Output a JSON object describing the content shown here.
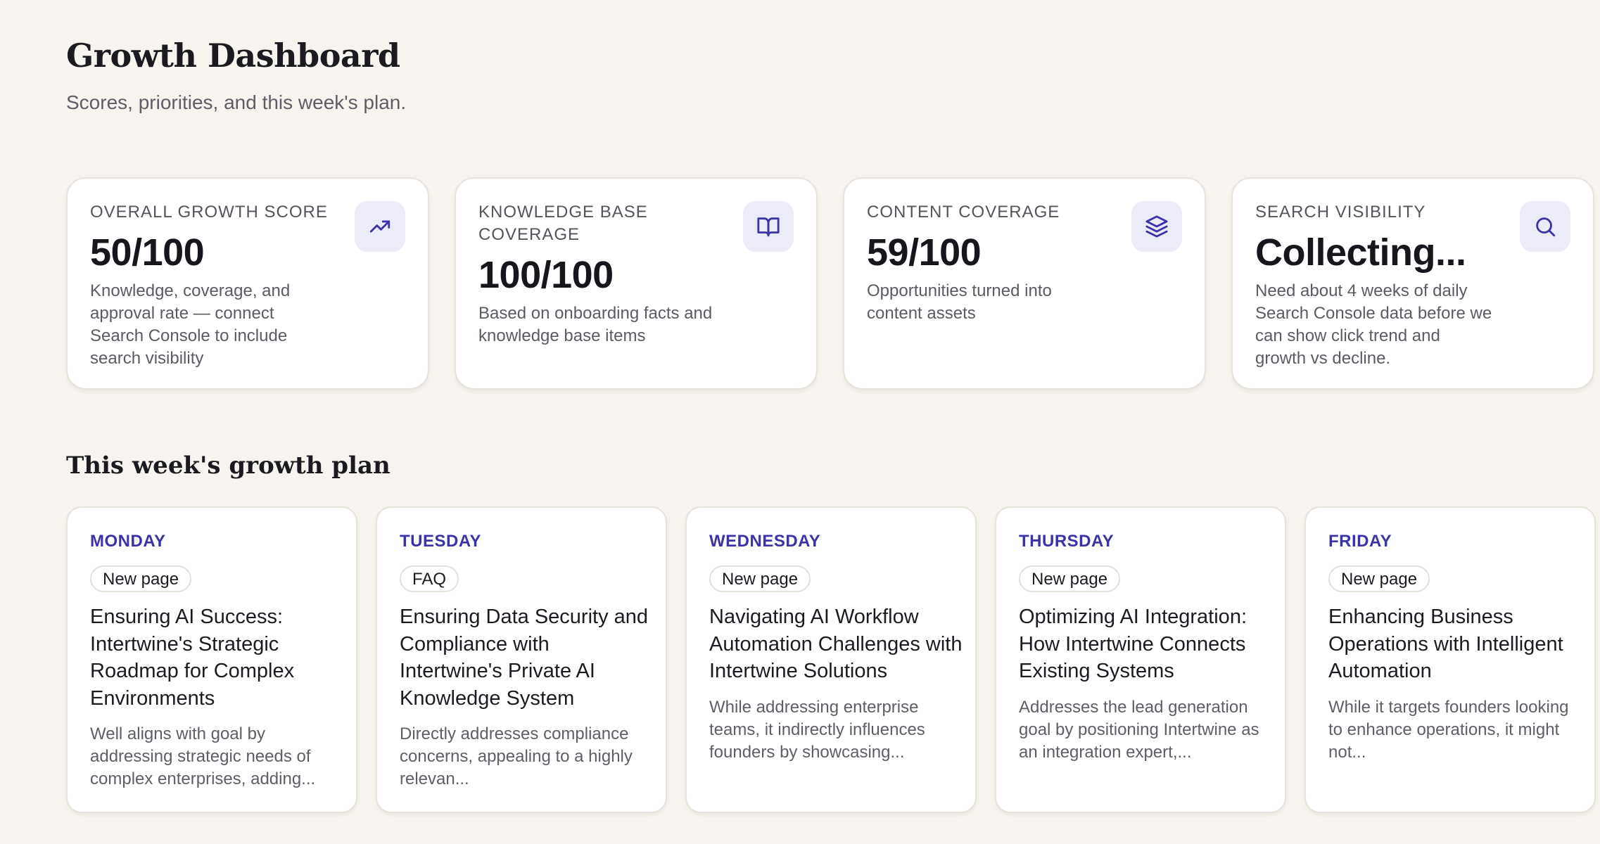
{
  "header": {
    "title": "Growth Dashboard",
    "subtitle": "Scores, priorities, and this week's plan."
  },
  "metrics": [
    {
      "label": "OVERALL GROWTH SCORE",
      "value": "50/100",
      "description": "Knowledge, coverage, and approval rate — connect Search Console to include search visibility",
      "icon": "trending-up-icon"
    },
    {
      "label": "KNOWLEDGE BASE COVERAGE",
      "value": "100/100",
      "description": "Based on onboarding facts and knowledge base items",
      "icon": "book-icon"
    },
    {
      "label": "CONTENT COVERAGE",
      "value": "59/100",
      "description": "Opportunities turned into content assets",
      "icon": "layers-icon"
    },
    {
      "label": "SEARCH VISIBILITY",
      "value": "Collecting...",
      "description": "Need about 4 weeks of daily Search Console data before we can show click trend and growth vs decline.",
      "icon": "search-icon"
    }
  ],
  "plan": {
    "title": "This week's growth plan",
    "days": [
      {
        "day": "MONDAY",
        "tag": "New page",
        "title": "Ensuring AI Success: Intertwine's Strategic Roadmap for Complex Environments",
        "summary": "Well aligns with goal by addressing strategic needs of complex enterprises, adding..."
      },
      {
        "day": "TUESDAY",
        "tag": "FAQ",
        "title": "Ensuring Data Security and Compliance with Intertwine's Private AI Knowledge System",
        "summary": "Directly addresses compliance concerns, appealing to a highly relevan..."
      },
      {
        "day": "WEDNESDAY",
        "tag": "New page",
        "title": "Navigating AI Workflow Automation Challenges with Intertwine Solutions",
        "summary": "While addressing enterprise teams, it indirectly influences founders by showcasing..."
      },
      {
        "day": "THURSDAY",
        "tag": "New page",
        "title": "Optimizing AI Integration: How Intertwine Connects Existing Systems",
        "summary": "Addresses the lead generation goal by positioning Intertwine as an integration expert,..."
      },
      {
        "day": "FRIDAY",
        "tag": "New page",
        "title": "Enhancing Business Operations with Intelligent Automation",
        "summary": "While it targets founders looking to enhance operations, it might not..."
      }
    ]
  },
  "colors": {
    "background": "#f7f3ee",
    "accent": "#3b33a8",
    "icon_badge": "#ecebf8"
  }
}
